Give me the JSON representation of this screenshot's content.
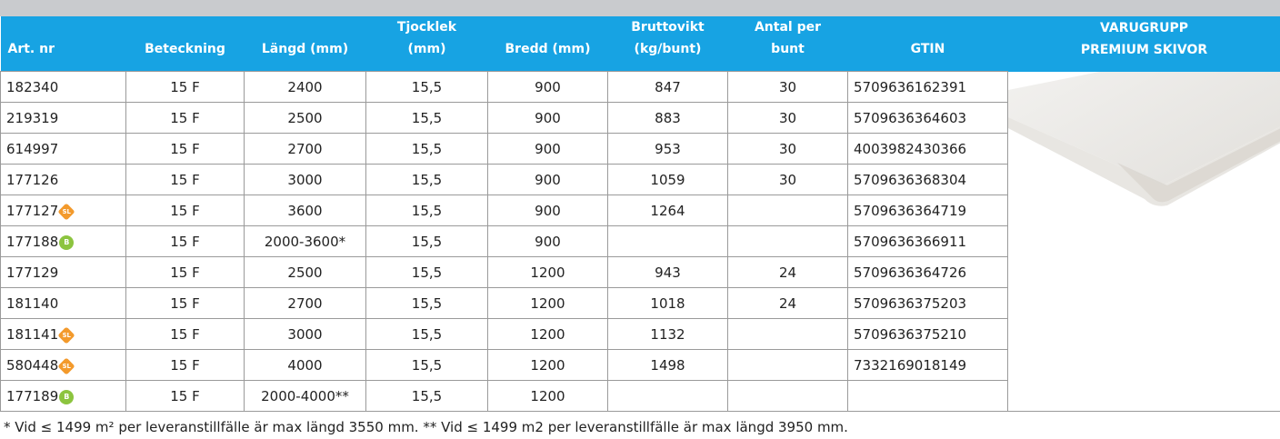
{
  "table": {
    "header": [
      [
        "Art. nr"
      ],
      [
        "Beteckning"
      ],
      [
        "Längd (mm)"
      ],
      [
        "Tjocklek",
        "(mm)"
      ],
      [
        "Bredd (mm)"
      ],
      [
        "Bruttovikt",
        "(kg/bunt)"
      ],
      [
        "Antal per",
        "bunt"
      ],
      [
        "GTIN"
      ],
      [
        "VARUGRUPP",
        "PREMIUM SKIVOR"
      ]
    ],
    "rows": [
      [
        "182340",
        null,
        "15 F",
        "2400",
        "15,5",
        "900",
        "847",
        "30",
        "5709636162391"
      ],
      [
        "219319",
        null,
        "15 F",
        "2500",
        "15,5",
        "900",
        "883",
        "30",
        "5709636364603"
      ],
      [
        "614997",
        null,
        "15 F",
        "2700",
        "15,5",
        "900",
        "953",
        "30",
        "4003982430366"
      ],
      [
        "177126",
        null,
        "15 F",
        "3000",
        "15,5",
        "900",
        "1059",
        "30",
        "5709636368304"
      ],
      [
        "177127",
        "SL",
        "15 F",
        "3600",
        "15,5",
        "900",
        "1264",
        null,
        "5709636364719"
      ],
      [
        "177188",
        "B",
        "15 F",
        "2000-3600*",
        "15,5",
        "900",
        null,
        null,
        "5709636366911"
      ],
      [
        "177129",
        null,
        "15 F",
        "2500",
        "15,5",
        "1200",
        "943",
        "24",
        "5709636364726"
      ],
      [
        "181140",
        null,
        "15 F",
        "2700",
        "15,5",
        "1200",
        "1018",
        "24",
        "5709636375203"
      ],
      [
        "181141",
        "SL",
        "15 F",
        "3000",
        "15,5",
        "1200",
        "1132",
        null,
        "5709636375210"
      ],
      [
        "580448",
        "SL",
        "15 F",
        "4000",
        "15,5",
        "1200",
        "1498",
        null,
        "7332169018149"
      ],
      [
        "177189",
        "B",
        "15 F",
        "2000-4000**",
        "15,5",
        "1200",
        null,
        null,
        null
      ]
    ]
  },
  "footnote": "* Vid ≤ 1499 m² per leveranstillfälle är max längd 3550 mm. ** Vid ≤ 1499 m2  per leveranstillfälle är max längd 3950 mm."
}
